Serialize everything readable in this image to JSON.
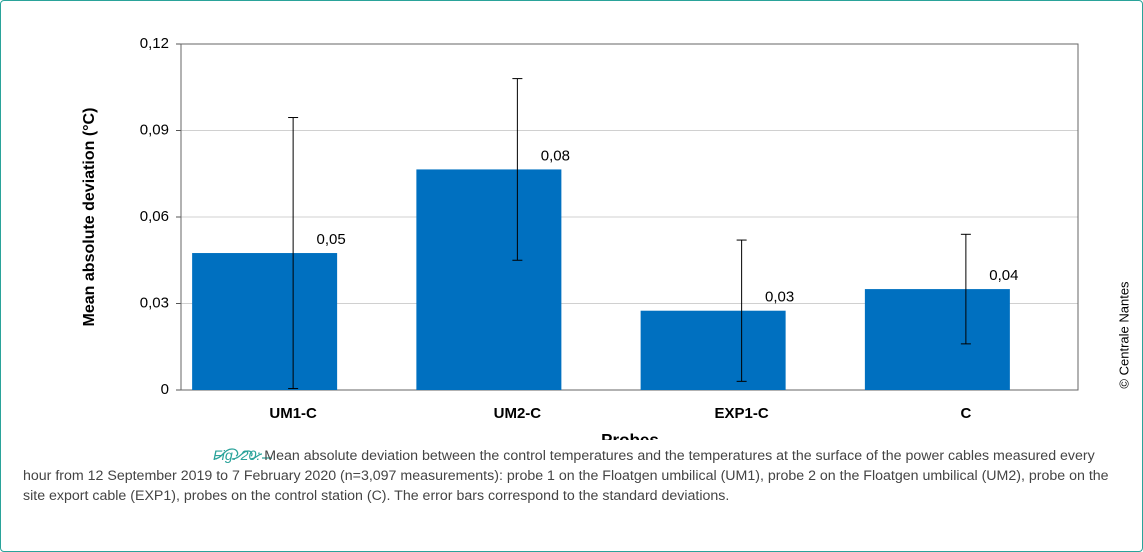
{
  "chart_data": {
    "type": "bar",
    "categories": [
      "UM1-C",
      "UM2-C",
      "EXP1-C",
      "C"
    ],
    "values": [
      0.0475,
      0.0765,
      0.0275,
      0.035
    ],
    "value_labels": [
      "0,05",
      "0,08",
      "0,03",
      "0,04"
    ],
    "errors": [
      0.047,
      0.0315,
      0.0245,
      0.019
    ],
    "color": "#0070c0",
    "ylabel": "Mean absolute deviation (°C)",
    "xlabel": "Probes",
    "ylim": [
      0,
      0.12
    ],
    "yticks": [
      0,
      {
        "value": 0.03,
        "label": "0,03"
      },
      {
        "value": 0.06,
        "label": "0,06"
      },
      {
        "value": 0.09,
        "label": "0,09"
      },
      {
        "value": 0.12,
        "label": "0,12"
      }
    ],
    "grid": true
  },
  "copyright": "© Centrale Nantes",
  "caption": {
    "label": "Fig. 20:",
    "text": " Mean absolute deviation between the control temperatures and the temperatures at the surface of the power cables measured every hour from 12 September 2019 to 7 February 2020 (n=3,097 measurements): probe 1 on the Floatgen umbilical (UM1), probe 2 on the Floatgen umbilical (UM2), probe on the site export cable (EXP1), probes on the control station (C). The error bars correspond to the standard deviations."
  }
}
